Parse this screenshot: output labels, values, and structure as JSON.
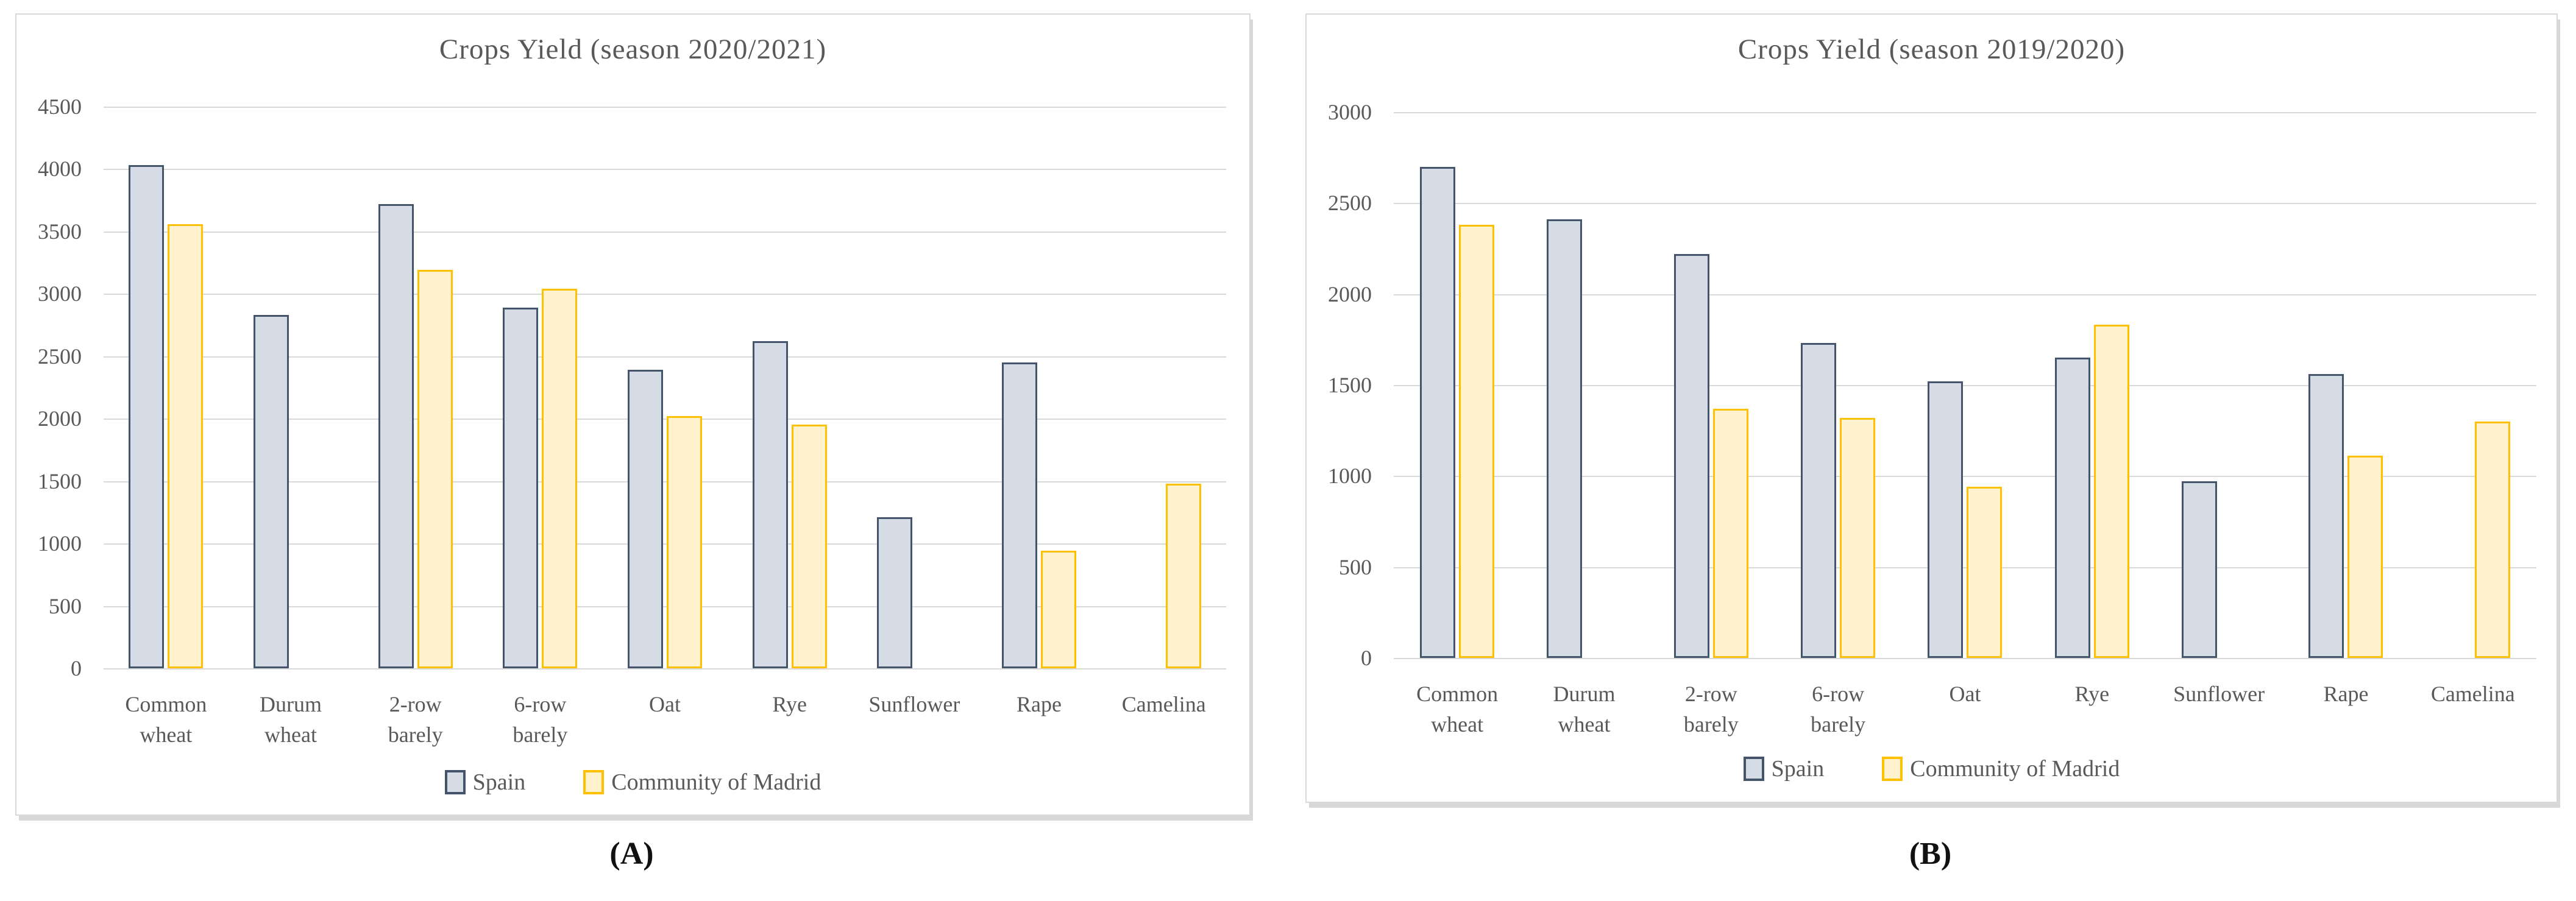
{
  "figure": {
    "caption_a": "(A)",
    "caption_b": "(B)"
  },
  "colors": {
    "spain_fill": "#D6DCE5",
    "spain_border": "#44546A",
    "madrid_fill": "#FFF2CC",
    "madrid_border": "#FFC000",
    "gridline": "#D9D9D9",
    "text": "#595959"
  },
  "chart_data": [
    {
      "type": "bar",
      "title": "Crops Yield (season 2020/2021)",
      "xlabel": "",
      "ylabel": "",
      "ylim": [
        0,
        4500
      ],
      "ytick_step": 500,
      "yticks": [
        4500,
        4000,
        3500,
        3000,
        2500,
        2000,
        1500,
        1000,
        500,
        0
      ],
      "grid": true,
      "legend_position": "bottom",
      "categories": [
        "Common\nwheat",
        "Durum\nwheat",
        "2-row\nbarely",
        "6-row\nbarely",
        "Oat",
        "Rye",
        "Sunflower",
        "Rape",
        "Camelina"
      ],
      "series": [
        {
          "name": "Spain",
          "values": [
            4030,
            2830,
            3720,
            2890,
            2390,
            2620,
            1210,
            2450,
            null
          ]
        },
        {
          "name": "Community of Madrid",
          "values": [
            3560,
            null,
            3190,
            3040,
            2020,
            1950,
            null,
            940,
            1480
          ]
        }
      ]
    },
    {
      "type": "bar",
      "title": "Crops Yield (season 2019/2020)",
      "xlabel": "",
      "ylabel": "",
      "ylim": [
        0,
        3000
      ],
      "ytick_step": 500,
      "yticks": [
        3000,
        2500,
        2000,
        1500,
        1000,
        500,
        0
      ],
      "grid": true,
      "legend_position": "bottom",
      "categories": [
        "Common\nwheat",
        "Durum\nwheat",
        "2-row\nbarely",
        "6-row\nbarely",
        "Oat",
        "Rye",
        "Sunflower",
        "Rape",
        "Camelina"
      ],
      "series": [
        {
          "name": "Spain",
          "values": [
            2700,
            2410,
            2220,
            1730,
            1520,
            1650,
            970,
            1560,
            null
          ]
        },
        {
          "name": "Community of Madrid",
          "values": [
            2380,
            null,
            1370,
            1320,
            940,
            1830,
            null,
            1110,
            1300
          ]
        }
      ]
    }
  ]
}
